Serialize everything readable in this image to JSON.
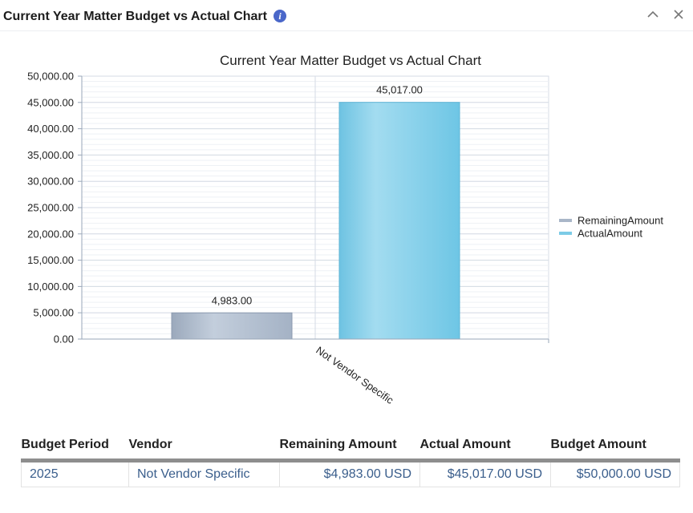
{
  "header": {
    "title": "Current Year Matter Budget vs Actual Chart"
  },
  "chart_data": {
    "type": "bar",
    "title": "Current Year Matter Budget vs Actual Chart",
    "categories": [
      "Not Vendor Specific"
    ],
    "series": [
      {
        "name": "RemainingAmount",
        "values": [
          4983.0
        ],
        "label": "4,983.00",
        "color": "#a9b6c8"
      },
      {
        "name": "ActualAmount",
        "values": [
          45017.0
        ],
        "label": "45,017.00",
        "color": "#7ccbe6"
      }
    ],
    "ylim": [
      0,
      50000
    ],
    "yticks": [
      "0.00",
      "5,000.00",
      "10,000.00",
      "15,000.00",
      "20,000.00",
      "25,000.00",
      "30,000.00",
      "35,000.00",
      "40,000.00",
      "45,000.00",
      "50,000.00"
    ],
    "grid": true,
    "legend": "right"
  },
  "table": {
    "columns": [
      "Budget Period",
      "Vendor",
      "Remaining Amount",
      "Actual Amount",
      "Budget Amount"
    ],
    "rows": [
      {
        "period": "2025",
        "vendor": "Not Vendor Specific",
        "remaining": "$4,983.00 USD",
        "actual": "$45,017.00 USD",
        "budget": "$50,000.00 USD"
      }
    ]
  }
}
